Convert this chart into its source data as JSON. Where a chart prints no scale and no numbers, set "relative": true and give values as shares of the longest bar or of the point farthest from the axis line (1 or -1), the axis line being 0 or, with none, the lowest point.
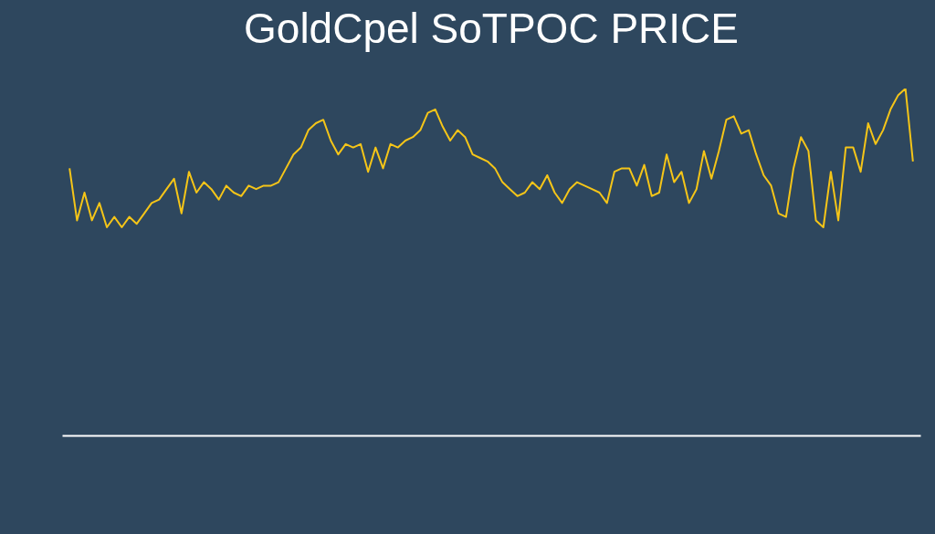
{
  "chart_data": {
    "type": "line",
    "title": "GoldCpel SoTPOC PRICE",
    "relative": true,
    "color": "#f5c518",
    "categories": [
      null,
      null,
      null,
      null,
      null,
      null,
      null,
      null,
      null,
      null,
      null,
      null,
      null,
      null,
      null,
      null,
      null,
      null,
      null,
      null,
      null,
      null,
      null,
      null,
      null,
      null,
      null,
      null,
      null,
      null,
      null,
      null,
      null,
      null,
      null,
      null,
      null,
      null,
      null,
      null,
      null,
      null,
      null,
      null,
      null,
      null,
      null,
      null,
      null,
      null,
      null,
      null,
      null,
      null,
      null,
      null,
      null,
      null,
      null,
      null,
      null,
      null,
      null,
      null,
      null,
      null,
      null,
      null,
      null,
      null,
      null,
      null,
      null,
      null,
      null,
      null,
      null,
      null,
      null,
      null,
      null,
      null,
      null,
      null,
      null,
      null,
      null,
      null,
      null,
      null,
      null,
      null,
      null,
      null,
      null,
      null,
      null,
      null,
      null,
      null,
      null,
      null,
      null,
      null,
      null,
      null,
      null,
      null,
      null,
      null,
      null,
      null,
      null,
      null
    ],
    "values": [
      0.77,
      0.62,
      0.7,
      0.62,
      0.67,
      0.6,
      0.63,
      0.6,
      0.63,
      0.61,
      0.64,
      0.67,
      0.68,
      0.71,
      0.74,
      0.64,
      0.76,
      0.7,
      0.73,
      0.71,
      0.68,
      0.72,
      0.7,
      0.69,
      0.72,
      0.71,
      0.72,
      0.72,
      0.73,
      0.77,
      0.81,
      0.83,
      0.88,
      0.9,
      0.91,
      0.85,
      0.81,
      0.84,
      0.83,
      0.84,
      0.76,
      0.83,
      0.77,
      0.84,
      0.83,
      0.85,
      0.86,
      0.88,
      0.93,
      0.94,
      0.89,
      0.85,
      0.88,
      0.86,
      0.81,
      0.8,
      0.79,
      0.77,
      0.73,
      0.71,
      0.69,
      0.7,
      0.73,
      0.71,
      0.75,
      0.7,
      0.67,
      0.71,
      0.73,
      0.72,
      0.71,
      0.7,
      0.67,
      0.76,
      0.77,
      0.77,
      0.72,
      0.78,
      0.69,
      0.7,
      0.81,
      0.73,
      0.76,
      0.67,
      0.71,
      0.82,
      0.74,
      0.82,
      0.91,
      0.92,
      0.87,
      0.88,
      0.81,
      0.75,
      0.72,
      0.64,
      0.63,
      0.77,
      0.86,
      0.82,
      0.62,
      0.6,
      0.76,
      0.62,
      0.83,
      0.83,
      0.76,
      0.9,
      0.84,
      0.88,
      0.94,
      0.98,
      1,
      0.79
    ]
  }
}
